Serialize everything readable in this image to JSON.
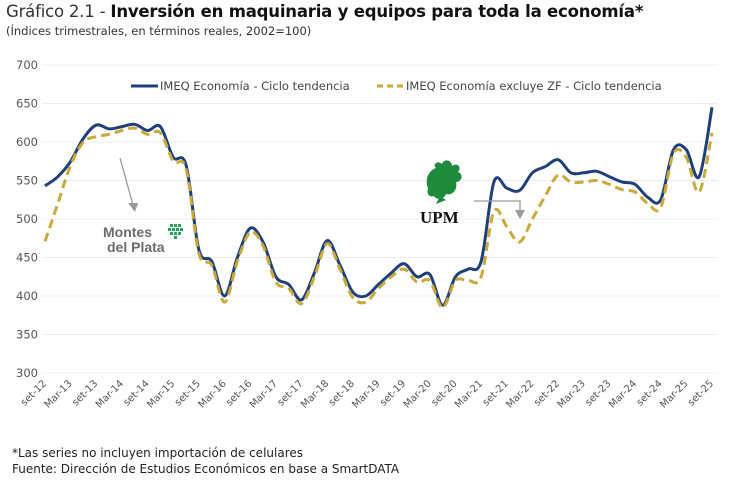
{
  "chart_data": {
    "type": "line",
    "title_prefix": "Gráfico 2.1 - ",
    "title": "Inversión en maquinaria y equipos para toda la economía*",
    "subtitle": "(Índices trimestrales, en términos reales, 2002=100)",
    "xlabel": "",
    "ylabel": "",
    "ylim": [
      300,
      700
    ],
    "yticks": [
      300,
      350,
      400,
      450,
      500,
      550,
      600,
      650,
      700
    ],
    "grid": true,
    "legend_position": "top",
    "x_tick_labels": [
      "set-12",
      "Mar-13",
      "set-13",
      "Mar-14",
      "set-14",
      "Mar-15",
      "set-15",
      "Mar-16",
      "set-16",
      "Mar-17",
      "set-17",
      "Mar-18",
      "set-18",
      "Mar-19",
      "set-19",
      "Mar-20",
      "set-20",
      "Mar-21",
      "set-21",
      "Mar-22",
      "set-22",
      "Mar-23",
      "set-23",
      "Mar-24",
      "set-24",
      "Mar-25",
      "set-25"
    ],
    "x_tick_every_quarters": 2,
    "series": [
      {
        "name": "IMEQ Economía - Ciclo tendencia",
        "color": "#1f3f7a",
        "style": "solid",
        "values": [
          543,
          555,
          575,
          605,
          622,
          617,
          620,
          623,
          615,
          620,
          580,
          570,
          460,
          445,
          400,
          450,
          488,
          470,
          425,
          415,
          395,
          430,
          472,
          440,
          405,
          400,
          415,
          430,
          442,
          425,
          428,
          388,
          425,
          435,
          445,
          548,
          540,
          537,
          560,
          568,
          577,
          560,
          560,
          562,
          555,
          548,
          545,
          528,
          525,
          590,
          590,
          555,
          645
        ]
      },
      {
        "name": "IMEQ Economía excluye ZF - Ciclo tendencia",
        "color": "#c9a93a",
        "style": "dashed",
        "values": [
          471,
          520,
          570,
          600,
          607,
          610,
          615,
          618,
          610,
          612,
          575,
          565,
          455,
          440,
          392,
          445,
          483,
          465,
          418,
          410,
          390,
          425,
          468,
          435,
          398,
          392,
          410,
          425,
          435,
          418,
          420,
          385,
          420,
          420,
          425,
          510,
          490,
          470,
          500,
          530,
          557,
          548,
          548,
          550,
          545,
          538,
          535,
          520,
          515,
          585,
          580,
          535,
          612
        ]
      }
    ],
    "annotations": [
      {
        "label": "Montes del Plata",
        "line1": "Montes",
        "line2": "del Plata",
        "points_to": "Mar-15"
      },
      {
        "label": "UPM",
        "points_to": "set-21"
      }
    ]
  },
  "footnote": "*Las series no incluyen importación de celulares",
  "source": "Fuente: Dirección de Estudios Económicos en base a SmartDATA"
}
